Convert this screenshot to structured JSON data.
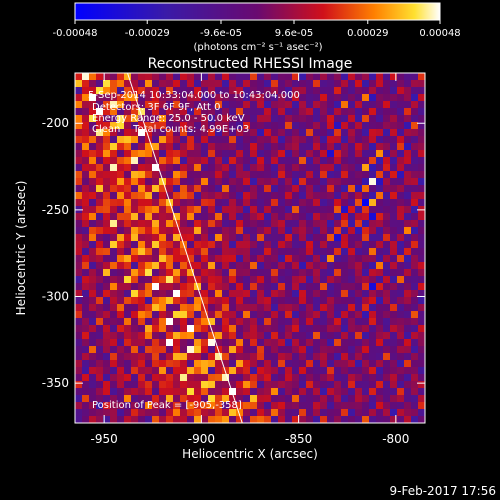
{
  "colorbar": {
    "ticks": [
      "-0.00048",
      "-0.00029",
      "-9.6e-05",
      "9.6e-05",
      "0.00029",
      "0.00048"
    ],
    "unit_label": "(photons cm⁻² s⁻¹ asec⁻²)",
    "range": [
      -0.00048,
      0.00048
    ]
  },
  "chart_data": {
    "type": "heatmap",
    "title": "Reconstructed RHESSI Image",
    "xlabel": "Heliocentric X (arcsec)",
    "ylabel": "Heliocentric Y (arcsec)",
    "xlim": [
      -965,
      -785
    ],
    "ylim": [
      -373,
      -171
    ],
    "x_ticks": [
      "-950",
      "-900",
      "-850",
      "-800"
    ],
    "y_ticks": [
      "-200",
      "-250",
      "-300",
      "-350"
    ],
    "colormap": "blue-purple-red-yellow-white",
    "annotations": [
      "5-Sep-2014 10:33:04.000 to 10:43:04.000",
      "Detectors: 3F 6F 9F, Att 0",
      "Energy Range: 25.0 - 50.0 keV",
      "Clean    Total counts: 4.99E+03"
    ],
    "peak_label": "Position of Peak = [-905,-358]",
    "peak": [
      -905,
      -358
    ],
    "limb_line": [
      [
        -938,
        -171
      ],
      [
        -879,
        -373
      ]
    ]
  },
  "footer": {
    "timestamp": "9-Feb-2017 17:56"
  }
}
